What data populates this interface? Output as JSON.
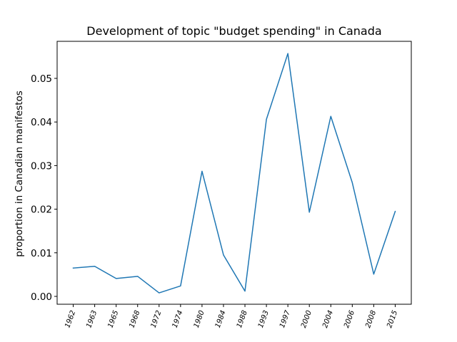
{
  "chart_data": {
    "type": "line",
    "title": "Development of topic \"budget spending\" in Canada",
    "xlabel": "",
    "ylabel": "proportion in Canadian manifestos",
    "categories": [
      "1962",
      "1963",
      "1965",
      "1968",
      "1972",
      "1974",
      "1980",
      "1984",
      "1988",
      "1993",
      "1997",
      "2000",
      "2004",
      "2006",
      "2008",
      "2015"
    ],
    "series": [
      {
        "values": [
          0.0065,
          0.0069,
          0.0041,
          0.0046,
          0.0008,
          0.0024,
          0.0287,
          0.0095,
          0.0012,
          0.0406,
          0.0557,
          0.0193,
          0.0413,
          0.0261,
          0.0051,
          0.0195
        ],
        "color": "#1f77b4"
      }
    ],
    "yticks": [
      "0.00",
      "0.01",
      "0.02",
      "0.03",
      "0.04",
      "0.05"
    ],
    "ylim": [
      -0.0018,
      0.0585
    ],
    "grid": false,
    "legend": "none"
  }
}
